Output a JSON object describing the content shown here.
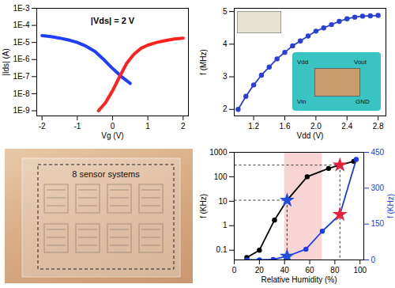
{
  "chart_data": [
    {
      "type": "line",
      "log": "y",
      "x_label": "Vg (V)",
      "y_label": "|Ids| (A)",
      "annotation": "|Vds| = 2 V",
      "xlim": [
        -2.15,
        2.15
      ],
      "xticks": [
        -2,
        -1,
        0,
        1,
        2
      ],
      "ylim": [
        5e-10,
        0.001
      ],
      "yticks": [
        {
          "value": 1e-09,
          "label": "1E-9"
        },
        {
          "value": 1e-08,
          "label": "1E-8"
        },
        {
          "value": 1e-07,
          "label": "1E-7"
        },
        {
          "value": 1e-06,
          "label": "1E-6"
        },
        {
          "value": 1e-05,
          "label": "1E-5"
        },
        {
          "value": 0.0001,
          "label": "1E-4"
        },
        {
          "value": 0.001,
          "label": "1E-3"
        }
      ],
      "series": [
        {
          "color": "#1f3fff",
          "x": [
            -2,
            -1.75,
            -1.5,
            -1.25,
            -1,
            -0.75,
            -0.5,
            -0.25,
            0,
            0.25,
            0.5
          ],
          "values": [
            2.5e-05,
            2.2e-05,
            1.8e-05,
            1.4e-05,
            1e-05,
            6e-06,
            3e-06,
            1e-06,
            3e-07,
            1e-07,
            4e-08
          ]
        },
        {
          "color": "#ff2020",
          "x": [
            -0.4,
            -0.2,
            0,
            0.2,
            0.4,
            0.6,
            0.8,
            1,
            1.25,
            1.5,
            1.75,
            2
          ],
          "values": [
            1e-09,
            3e-09,
            1.5e-08,
            1e-07,
            6e-07,
            2e-06,
            4.5e-06,
            7e-06,
            1e-05,
            1.3e-05,
            1.6e-05,
            1.8e-05
          ]
        }
      ]
    },
    {
      "type": "line",
      "marker": "circle",
      "x_label": "Vdd (V)",
      "y_label": "f (MHz)",
      "annotations": [
        "Vdd",
        "Vout",
        "Vin",
        "GND"
      ],
      "xlim": [
        0.95,
        2.9
      ],
      "xticks": [
        1.2,
        1.6,
        {
          "value": 2,
          "label": "2.0"
        },
        2.4,
        2.8
      ],
      "ylim": [
        1.8,
        5.1
      ],
      "yticks": [
        2,
        3,
        4,
        5
      ],
      "series": [
        {
          "color": "#2a3fd6",
          "x": [
            1.0,
            1.1,
            1.2,
            1.3,
            1.4,
            1.5,
            1.6,
            1.7,
            1.8,
            1.9,
            2.0,
            2.1,
            2.2,
            2.3,
            2.4,
            2.5,
            2.6,
            2.7,
            2.8
          ],
          "values": [
            2.0,
            2.4,
            2.75,
            3.05,
            3.3,
            3.55,
            3.75,
            3.95,
            4.1,
            4.25,
            4.4,
            4.5,
            4.6,
            4.7,
            4.78,
            4.83,
            4.86,
            4.87,
            4.88
          ]
        }
      ]
    },
    {
      "type": "image",
      "annotation": "8 sensor systems"
    },
    {
      "type": "line",
      "marker": "circle",
      "x_label": "Relative Humidity (%)",
      "y_label": "f (KHz)",
      "y2_label": "f (KHz)",
      "log": "y",
      "xlim": [
        0,
        103
      ],
      "xticks": [
        0,
        20,
        40,
        60,
        80,
        100
      ],
      "ylim": [
        0.04,
        1000
      ],
      "yticks": [
        0.1,
        1,
        10,
        100,
        1000
      ],
      "y2lim": [
        0,
        450
      ],
      "y2ticks": [
        0,
        150,
        300,
        450
      ],
      "shaded_range": [
        40,
        70
      ],
      "series": [
        {
          "color": "#000000",
          "x": [
            10,
            20,
            32,
            42,
            58,
            75,
            84,
            95
          ],
          "values": [
            0.05,
            0.1,
            1.7,
            11,
            100,
            220,
            300,
            430
          ]
        },
        {
          "color": "#1a3ce8",
          "axis": "y2",
          "x": [
            10,
            20,
            31,
            42,
            57,
            70,
            84,
            97
          ],
          "values": [
            0,
            0,
            2,
            15,
            45,
            120,
            190,
            420
          ]
        }
      ],
      "highlights": [
        {
          "x": 42,
          "y": 11,
          "color": "#1f4fd8",
          "marker": "star"
        },
        {
          "x": 84,
          "y": 300,
          "color": "#e8203a",
          "marker": "star"
        },
        {
          "x": 42,
          "y": 15,
          "color": "#1f4fd8",
          "marker": "star",
          "axis": "y2"
        },
        {
          "x": 84,
          "y": 190,
          "color": "#e8203a",
          "marker": "star",
          "axis": "y2"
        }
      ]
    }
  ]
}
